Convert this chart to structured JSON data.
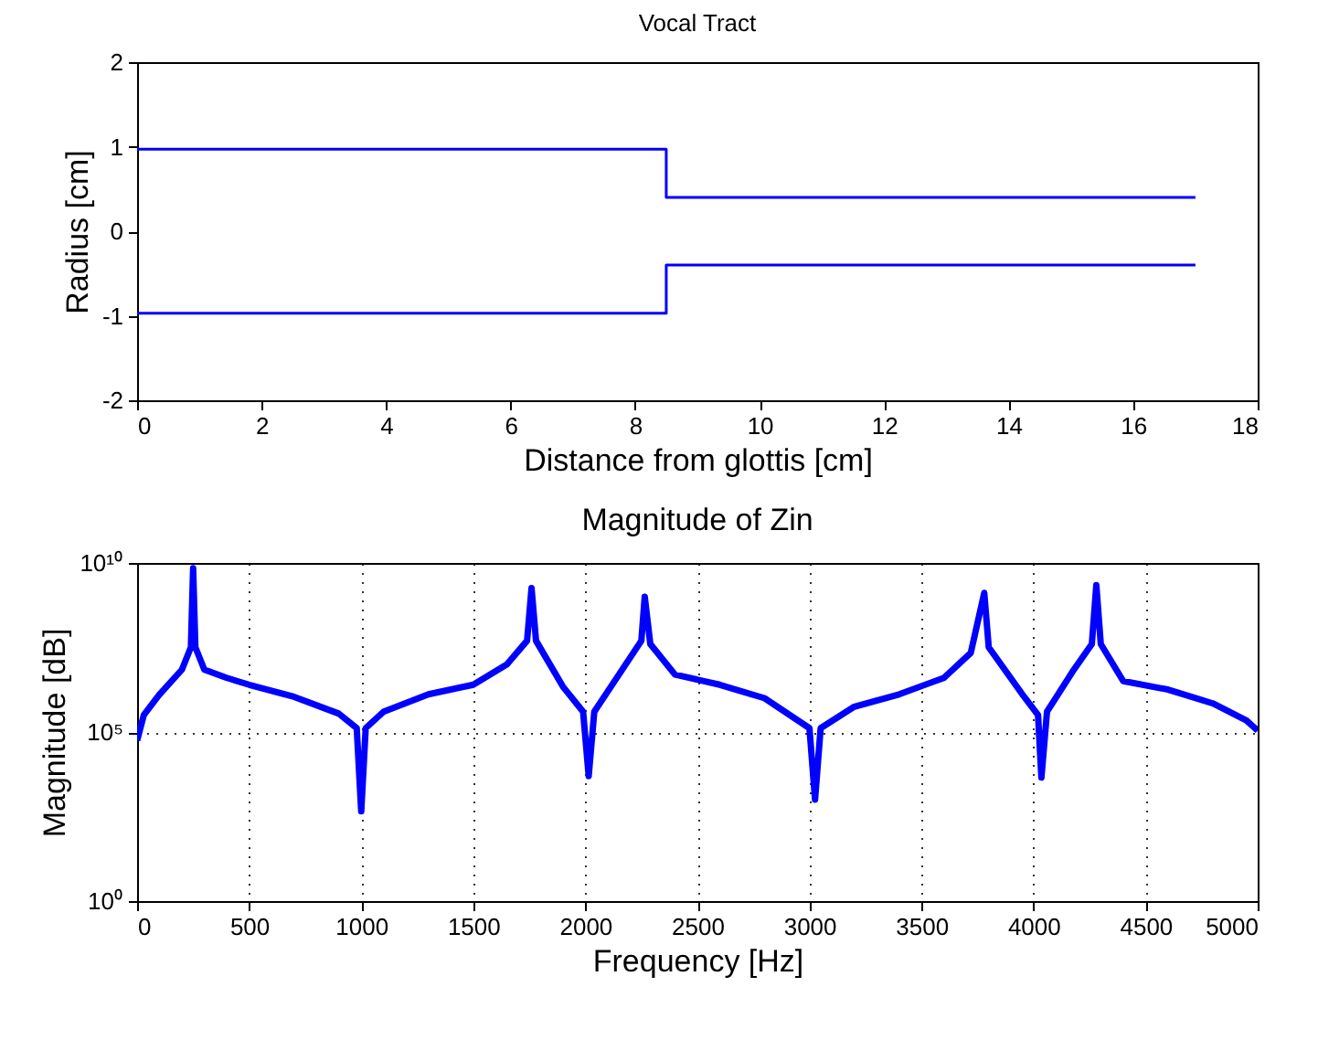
{
  "chart_data": [
    {
      "type": "step",
      "title": "Vocal Tract",
      "xlabel": "Distance from glottis [cm]",
      "ylabel": "Radius [cm]",
      "xlim": [
        0,
        18
      ],
      "xticks": [
        0,
        2,
        4,
        6,
        8,
        10,
        12,
        14,
        16,
        18
      ],
      "ylim": [
        -2,
        2
      ],
      "yticks": [
        -2,
        -1,
        0,
        1,
        2
      ],
      "grid": false,
      "series": [
        {
          "color": "#0000ff",
          "x": [
            0,
            8.5,
            17
          ],
          "values": [
            0.97,
            0.4,
            0.4
          ]
        },
        {
          "color": "#0000ff",
          "x": [
            0,
            8.5,
            17
          ],
          "values": [
            -0.97,
            -0.4,
            -0.4
          ]
        }
      ]
    },
    {
      "type": "line",
      "title": "Magnitude of Zin",
      "xlabel": "Frequency [Hz]",
      "ylabel": "Magnitude [dB]",
      "log": "y",
      "xlim": [
        0,
        5000
      ],
      "xticks": [
        0,
        500,
        1000,
        1500,
        2000,
        2500,
        3000,
        3500,
        4000,
        4500,
        5000
      ],
      "ylim": [
        1,
        10000000000
      ],
      "yticks": [
        {
          "value": 1,
          "label": "10⁰"
        },
        {
          "value": 100000,
          "label": "10⁵"
        },
        {
          "value": 10000000000,
          "label": "10¹⁰"
        }
      ],
      "grid": true,
      "line_style": "solid",
      "series": [
        {
          "color": "#0000ff",
          "x": [
            0,
            30,
            100,
            200,
            240,
            250,
            260,
            300,
            400,
            500,
            700,
            900,
            980,
            1000,
            1020,
            1100,
            1300,
            1500,
            1650,
            1740,
            1760,
            1780,
            1900,
            1990,
            2015,
            2040,
            2150,
            2250,
            2265,
            2290,
            2400,
            2600,
            2800,
            3000,
            3025,
            3050,
            3200,
            3400,
            3600,
            3720,
            3780,
            3800,
            3950,
            4020,
            4035,
            4060,
            4180,
            4260,
            4280,
            4300,
            4400,
            4600,
            4800,
            4950,
            5000
          ],
          "values": [
            56000,
            320000,
            1300000,
            7000000,
            32000000,
            7000000000,
            32000000,
            7000000,
            4000000,
            2500000,
            1100000,
            350000,
            130000,
            450,
            130000,
            400000,
            1300000,
            2500000,
            10000000,
            50000000,
            1800000000,
            50000000,
            2200000,
            400000,
            5000,
            400000,
            5000000,
            50000000,
            1000000000,
            40000000,
            5000000,
            2500000,
            1000000,
            130000,
            1000,
            130000,
            560000,
            1300000,
            4000000,
            22000000,
            1300000000,
            32000000,
            1300000,
            320000,
            4500,
            400000,
            7000000,
            40000000,
            2200000000,
            40000000,
            3200000,
            1800000,
            700000,
            220000,
            110000
          ]
        }
      ]
    }
  ]
}
